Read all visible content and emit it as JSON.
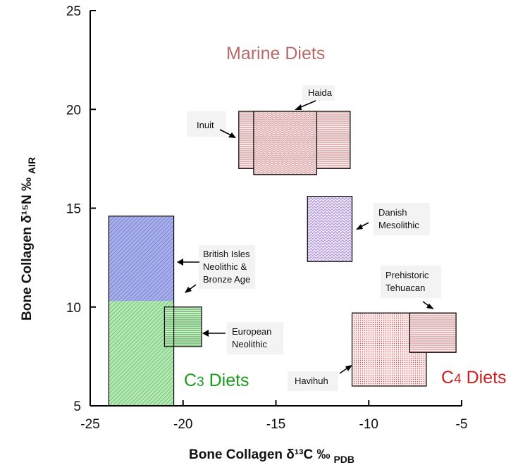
{
  "chart_data": {
    "type": "box-region",
    "xlabel": "Bone Collagen δ¹³C ‰",
    "xlabel_subscript": "PDB",
    "ylabel": "Bone Collagen δ¹⁵N ‰",
    "ylabel_subscript": "AIR",
    "xlim": [
      -25,
      -5
    ],
    "ylim": [
      5,
      25
    ],
    "xticks": [
      -25,
      -20,
      -15,
      -10,
      -5
    ],
    "yticks": [
      5,
      10,
      15,
      20,
      25
    ],
    "grid": false,
    "regions": [
      {
        "name": "C3 Diets",
        "main": "C",
        "subscript": "3",
        "rest": " Diets",
        "color": "#1e9a1e"
      },
      {
        "name": "C4 Diets",
        "main": "C",
        "subscript": "4",
        "rest": " Diets",
        "color": "#cc1f1f"
      },
      {
        "name": "Marine Diets",
        "main": "Marine Diets",
        "subscript": "",
        "rest": "",
        "color": "#b86a6a"
      }
    ],
    "boxes": [
      {
        "id": "british-isles-blue",
        "x": [
          -24,
          -20.5
        ],
        "y": [
          10.3,
          14.6
        ],
        "color": "#7f88d8",
        "pattern": "diag"
      },
      {
        "id": "british-isles-green",
        "x": [
          -24,
          -20.5
        ],
        "y": [
          5,
          10.3
        ],
        "color": "#7bd07b",
        "pattern": "diag"
      },
      {
        "id": "european-neolithic",
        "x": [
          -21,
          -19
        ],
        "y": [
          8,
          10
        ],
        "color": "#4caf4c",
        "pattern": "horiz"
      },
      {
        "id": "inuit",
        "x": [
          -17,
          -11
        ],
        "y": [
          17,
          19.9
        ],
        "color": "#b87070",
        "pattern": "horiz"
      },
      {
        "id": "haida",
        "x": [
          -16.2,
          -12.8
        ],
        "y": [
          16.7,
          19.9
        ],
        "color": "#c98585",
        "pattern": "wave"
      },
      {
        "id": "danish-mesolithic",
        "x": [
          -13.3,
          -10.9
        ],
        "y": [
          12.3,
          15.6
        ],
        "color": "#a98ad0",
        "pattern": "wave"
      },
      {
        "id": "havihuh",
        "x": [
          -10.9,
          -6.9
        ],
        "y": [
          6,
          9.7
        ],
        "color": "#c56565",
        "pattern": "dots"
      },
      {
        "id": "prehistoric-tehuacan",
        "x": [
          -7.8,
          -5.3
        ],
        "y": [
          7.7,
          9.7
        ],
        "color": "#c56565",
        "pattern": "horiz"
      }
    ],
    "labels": [
      {
        "id": "inuit",
        "lines": [
          "Inuit"
        ]
      },
      {
        "id": "haida",
        "lines": [
          "Haida"
        ]
      },
      {
        "id": "danish-mesolithic",
        "lines": [
          "Danish",
          "Mesolithic"
        ]
      },
      {
        "id": "british-isles",
        "lines": [
          "British Isles",
          "Neolithic &",
          "Bronze Age"
        ]
      },
      {
        "id": "european-neolithic",
        "lines": [
          "European",
          "Neolithic"
        ]
      },
      {
        "id": "prehistoric-tehuacan",
        "lines": [
          "Prehistoric",
          "Tehuacan"
        ]
      },
      {
        "id": "havihuh",
        "lines": [
          "Havihuh"
        ]
      }
    ]
  }
}
